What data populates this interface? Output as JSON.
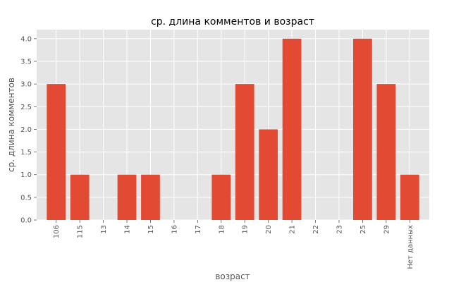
{
  "chart_data": {
    "type": "bar",
    "title": "ср. длина комментов и возраст",
    "xlabel": "возраст",
    "ylabel": "ср. длина комментов",
    "categories": [
      "106",
      "115",
      "13",
      "14",
      "15",
      "16",
      "17",
      "18",
      "19",
      "20",
      "21",
      "22",
      "23",
      "25",
      "29",
      "Нет данных"
    ],
    "values": [
      3,
      1,
      0,
      1,
      1,
      0,
      0,
      1,
      3,
      2,
      4,
      0,
      0,
      4,
      3,
      1
    ],
    "ylim": [
      0,
      4.2
    ],
    "yticks": [
      "0.0",
      "0.5",
      "1.0",
      "1.5",
      "2.0",
      "2.5",
      "3.0",
      "3.5",
      "4.0"
    ],
    "grid": true,
    "colors": {
      "bar": "#e24a33",
      "plot_background": "#e5e5e5",
      "grid": "#ffffff"
    }
  }
}
